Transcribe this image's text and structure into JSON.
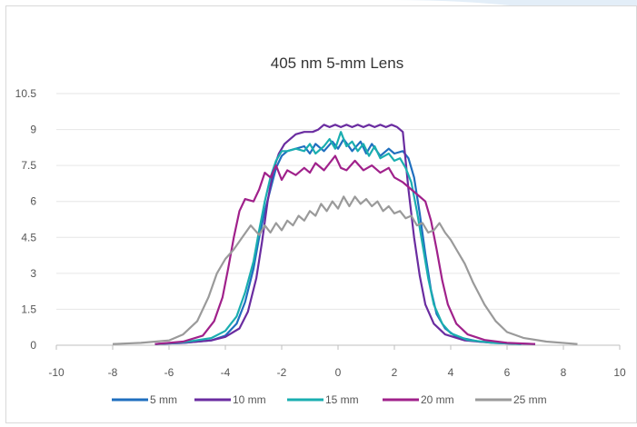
{
  "chart_data": {
    "type": "line",
    "title": "405 nm 5-mm Lens",
    "xlabel": "",
    "ylabel": "",
    "xlim": [
      -10,
      10
    ],
    "ylim": [
      0,
      10.5
    ],
    "x_ticks": [
      "-10",
      "-8",
      "-6",
      "-4",
      "-2",
      "0",
      "2",
      "4",
      "6",
      "8",
      "10"
    ],
    "y_ticks": [
      "0",
      "1.5",
      "3",
      "4.5",
      "6",
      "7.5",
      "9",
      "10.5"
    ],
    "grid": "horizontal",
    "legend_position": "bottom",
    "series": [
      {
        "name": "5 mm",
        "color": "#1f6fbf",
        "points": [
          [
            -6.5,
            0.05
          ],
          [
            -5.5,
            0.1
          ],
          [
            -4.5,
            0.2
          ],
          [
            -4.0,
            0.4
          ],
          [
            -3.6,
            0.9
          ],
          [
            -3.3,
            1.8
          ],
          [
            -3.0,
            3.2
          ],
          [
            -2.8,
            4.5
          ],
          [
            -2.6,
            5.6
          ],
          [
            -2.4,
            6.5
          ],
          [
            -2.2,
            7.4
          ],
          [
            -2.0,
            7.9
          ],
          [
            -1.8,
            8.1
          ],
          [
            -1.5,
            8.2
          ],
          [
            -1.2,
            8.3
          ],
          [
            -1.0,
            8.0
          ],
          [
            -0.8,
            8.4
          ],
          [
            -0.5,
            8.1
          ],
          [
            -0.2,
            8.5
          ],
          [
            0.0,
            8.2
          ],
          [
            0.2,
            8.6
          ],
          [
            0.5,
            8.1
          ],
          [
            0.8,
            8.5
          ],
          [
            1.0,
            8.0
          ],
          [
            1.2,
            8.4
          ],
          [
            1.5,
            7.9
          ],
          [
            1.8,
            8.2
          ],
          [
            2.0,
            8.0
          ],
          [
            2.3,
            8.1
          ],
          [
            2.5,
            7.8
          ],
          [
            2.7,
            7.0
          ],
          [
            2.9,
            5.5
          ],
          [
            3.1,
            3.8
          ],
          [
            3.3,
            2.3
          ],
          [
            3.5,
            1.3
          ],
          [
            3.8,
            0.7
          ],
          [
            4.2,
            0.35
          ],
          [
            5.0,
            0.15
          ],
          [
            6.0,
            0.08
          ],
          [
            7.0,
            0.05
          ]
        ]
      },
      {
        "name": "10 mm",
        "color": "#6a2ca0",
        "points": [
          [
            -6.5,
            0.05
          ],
          [
            -5.5,
            0.1
          ],
          [
            -4.5,
            0.2
          ],
          [
            -4.0,
            0.35
          ],
          [
            -3.5,
            0.7
          ],
          [
            -3.2,
            1.4
          ],
          [
            -2.9,
            2.8
          ],
          [
            -2.7,
            4.3
          ],
          [
            -2.5,
            6.0
          ],
          [
            -2.3,
            7.3
          ],
          [
            -2.1,
            8.0
          ],
          [
            -1.9,
            8.4
          ],
          [
            -1.7,
            8.6
          ],
          [
            -1.5,
            8.8
          ],
          [
            -1.2,
            8.9
          ],
          [
            -0.9,
            8.9
          ],
          [
            -0.7,
            9.0
          ],
          [
            -0.5,
            9.2
          ],
          [
            -0.3,
            9.1
          ],
          [
            -0.1,
            9.2
          ],
          [
            0.1,
            9.1
          ],
          [
            0.3,
            9.2
          ],
          [
            0.5,
            9.1
          ],
          [
            0.7,
            9.2
          ],
          [
            0.9,
            9.1
          ],
          [
            1.1,
            9.2
          ],
          [
            1.3,
            9.1
          ],
          [
            1.5,
            9.2
          ],
          [
            1.7,
            9.1
          ],
          [
            1.9,
            9.2
          ],
          [
            2.1,
            9.1
          ],
          [
            2.3,
            8.9
          ],
          [
            2.5,
            6.5
          ],
          [
            2.7,
            4.5
          ],
          [
            2.9,
            2.9
          ],
          [
            3.1,
            1.7
          ],
          [
            3.4,
            0.9
          ],
          [
            3.8,
            0.45
          ],
          [
            4.5,
            0.2
          ],
          [
            5.5,
            0.1
          ],
          [
            6.5,
            0.05
          ]
        ]
      },
      {
        "name": "15 mm",
        "color": "#1aaeb0",
        "points": [
          [
            -6.5,
            0.05
          ],
          [
            -5.5,
            0.12
          ],
          [
            -4.5,
            0.3
          ],
          [
            -4.0,
            0.6
          ],
          [
            -3.6,
            1.2
          ],
          [
            -3.3,
            2.2
          ],
          [
            -3.0,
            3.5
          ],
          [
            -2.8,
            4.8
          ],
          [
            -2.6,
            6.0
          ],
          [
            -2.4,
            7.0
          ],
          [
            -2.2,
            7.7
          ],
          [
            -2.0,
            8.1
          ],
          [
            -1.8,
            8.1
          ],
          [
            -1.5,
            8.2
          ],
          [
            -1.2,
            8.1
          ],
          [
            -1.0,
            8.4
          ],
          [
            -0.8,
            8.0
          ],
          [
            -0.5,
            8.3
          ],
          [
            -0.3,
            8.6
          ],
          [
            -0.1,
            8.2
          ],
          [
            0.1,
            8.9
          ],
          [
            0.3,
            8.3
          ],
          [
            0.5,
            8.5
          ],
          [
            0.7,
            8.1
          ],
          [
            0.9,
            8.4
          ],
          [
            1.1,
            7.9
          ],
          [
            1.3,
            8.3
          ],
          [
            1.5,
            7.8
          ],
          [
            1.8,
            8.0
          ],
          [
            2.0,
            7.7
          ],
          [
            2.2,
            7.8
          ],
          [
            2.4,
            7.4
          ],
          [
            2.6,
            6.8
          ],
          [
            2.8,
            5.6
          ],
          [
            3.0,
            4.2
          ],
          [
            3.2,
            2.8
          ],
          [
            3.4,
            1.7
          ],
          [
            3.7,
            0.9
          ],
          [
            4.0,
            0.5
          ],
          [
            4.6,
            0.22
          ],
          [
            5.5,
            0.1
          ],
          [
            6.5,
            0.05
          ]
        ]
      },
      {
        "name": "20 mm",
        "color": "#a0218b",
        "points": [
          [
            -6.5,
            0.05
          ],
          [
            -5.5,
            0.15
          ],
          [
            -4.8,
            0.4
          ],
          [
            -4.4,
            1.0
          ],
          [
            -4.1,
            2.0
          ],
          [
            -3.9,
            3.2
          ],
          [
            -3.7,
            4.5
          ],
          [
            -3.5,
            5.6
          ],
          [
            -3.3,
            6.1
          ],
          [
            -3.0,
            6.0
          ],
          [
            -2.8,
            6.5
          ],
          [
            -2.6,
            7.2
          ],
          [
            -2.4,
            7.0
          ],
          [
            -2.2,
            7.5
          ],
          [
            -2.0,
            6.9
          ],
          [
            -1.8,
            7.3
          ],
          [
            -1.5,
            7.1
          ],
          [
            -1.2,
            7.4
          ],
          [
            -1.0,
            7.2
          ],
          [
            -0.8,
            7.6
          ],
          [
            -0.5,
            7.3
          ],
          [
            -0.3,
            7.6
          ],
          [
            -0.1,
            7.9
          ],
          [
            0.1,
            7.4
          ],
          [
            0.3,
            7.3
          ],
          [
            0.6,
            7.7
          ],
          [
            0.9,
            7.3
          ],
          [
            1.2,
            7.5
          ],
          [
            1.5,
            7.2
          ],
          [
            1.8,
            7.4
          ],
          [
            2.0,
            7.0
          ],
          [
            2.3,
            6.8
          ],
          [
            2.6,
            6.5
          ],
          [
            2.9,
            6.2
          ],
          [
            3.1,
            6.0
          ],
          [
            3.3,
            5.2
          ],
          [
            3.5,
            4.0
          ],
          [
            3.7,
            2.7
          ],
          [
            3.9,
            1.7
          ],
          [
            4.2,
            0.9
          ],
          [
            4.6,
            0.45
          ],
          [
            5.2,
            0.22
          ],
          [
            6.0,
            0.1
          ],
          [
            7.0,
            0.05
          ]
        ]
      },
      {
        "name": "25 mm",
        "color": "#9a9a9a",
        "points": [
          [
            -8.0,
            0.05
          ],
          [
            -7.0,
            0.1
          ],
          [
            -6.0,
            0.2
          ],
          [
            -5.5,
            0.45
          ],
          [
            -5.0,
            1.0
          ],
          [
            -4.6,
            2.0
          ],
          [
            -4.3,
            3.0
          ],
          [
            -4.0,
            3.6
          ],
          [
            -3.7,
            4.0
          ],
          [
            -3.4,
            4.5
          ],
          [
            -3.1,
            5.0
          ],
          [
            -2.8,
            4.6
          ],
          [
            -2.6,
            5.0
          ],
          [
            -2.4,
            4.7
          ],
          [
            -2.2,
            5.1
          ],
          [
            -2.0,
            4.8
          ],
          [
            -1.8,
            5.2
          ],
          [
            -1.6,
            5.0
          ],
          [
            -1.4,
            5.4
          ],
          [
            -1.2,
            5.2
          ],
          [
            -1.0,
            5.6
          ],
          [
            -0.8,
            5.4
          ],
          [
            -0.6,
            5.9
          ],
          [
            -0.4,
            5.6
          ],
          [
            -0.2,
            6.0
          ],
          [
            0.0,
            5.7
          ],
          [
            0.2,
            6.2
          ],
          [
            0.4,
            5.8
          ],
          [
            0.6,
            6.2
          ],
          [
            0.8,
            5.9
          ],
          [
            1.0,
            6.1
          ],
          [
            1.2,
            5.8
          ],
          [
            1.4,
            6.0
          ],
          [
            1.6,
            5.6
          ],
          [
            1.8,
            5.8
          ],
          [
            2.0,
            5.5
          ],
          [
            2.2,
            5.6
          ],
          [
            2.4,
            5.3
          ],
          [
            2.6,
            5.4
          ],
          [
            2.8,
            5.0
          ],
          [
            3.0,
            5.1
          ],
          [
            3.2,
            4.7
          ],
          [
            3.4,
            4.8
          ],
          [
            3.6,
            5.1
          ],
          [
            3.8,
            4.7
          ],
          [
            4.0,
            4.4
          ],
          [
            4.2,
            4.0
          ],
          [
            4.5,
            3.4
          ],
          [
            4.8,
            2.6
          ],
          [
            5.2,
            1.7
          ],
          [
            5.6,
            1.0
          ],
          [
            6.0,
            0.55
          ],
          [
            6.6,
            0.3
          ],
          [
            7.4,
            0.15
          ],
          [
            8.5,
            0.05
          ]
        ]
      }
    ]
  }
}
